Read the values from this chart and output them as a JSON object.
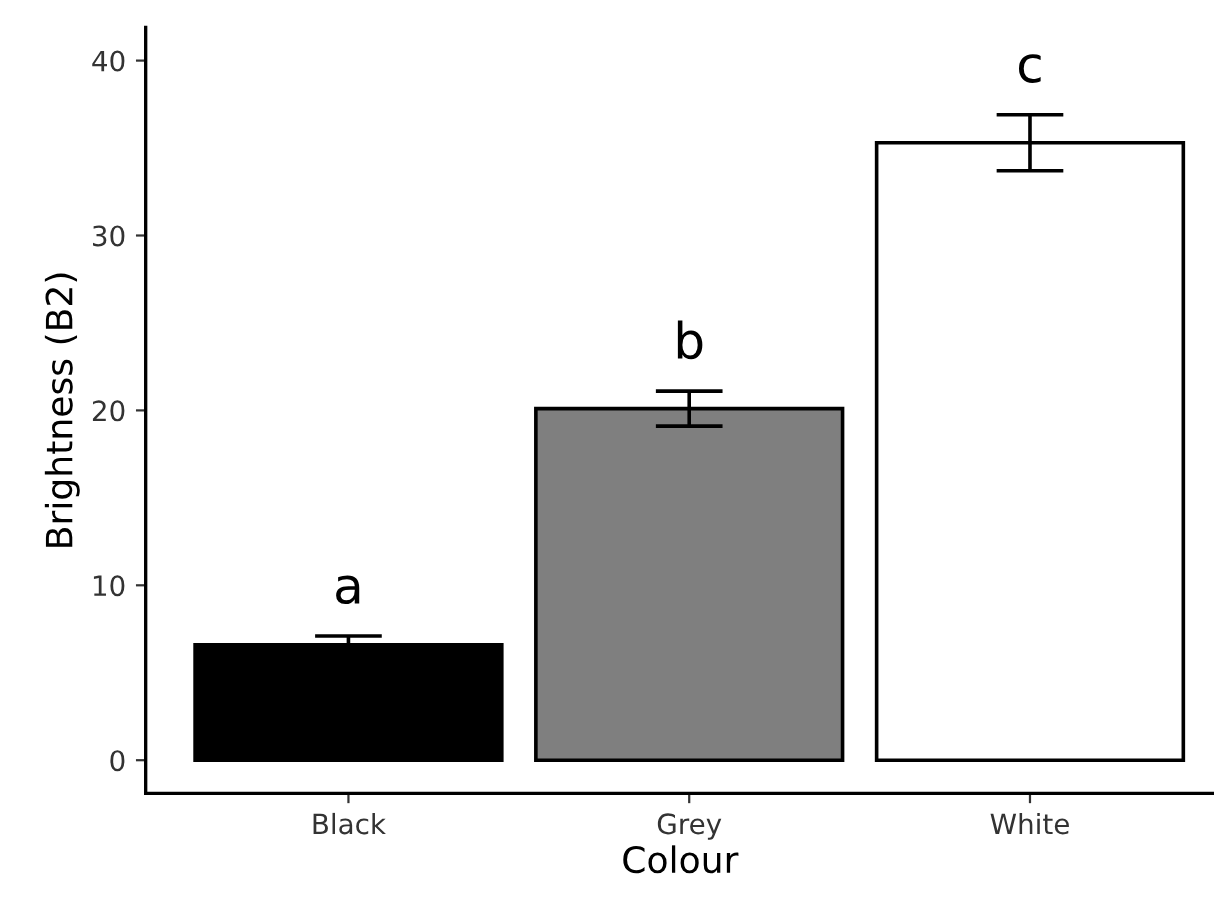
{
  "chart_data": {
    "type": "bar",
    "xlabel": "Colour",
    "ylabel": "Brightness (B2)",
    "categories": [
      "Black",
      "Grey",
      "White"
    ],
    "values": [
      6.6,
      20.1,
      35.3
    ],
    "errors": [
      0.5,
      1.0,
      1.6
    ],
    "colors": [
      "#000000",
      "#7f7f7f",
      "#ffffff"
    ],
    "ylim": [
      -1.9,
      41.9
    ],
    "yticks": [
      0,
      10,
      20,
      30,
      40
    ],
    "grid": false,
    "legend": false,
    "annotations": [
      "a",
      "b",
      "c"
    ]
  }
}
